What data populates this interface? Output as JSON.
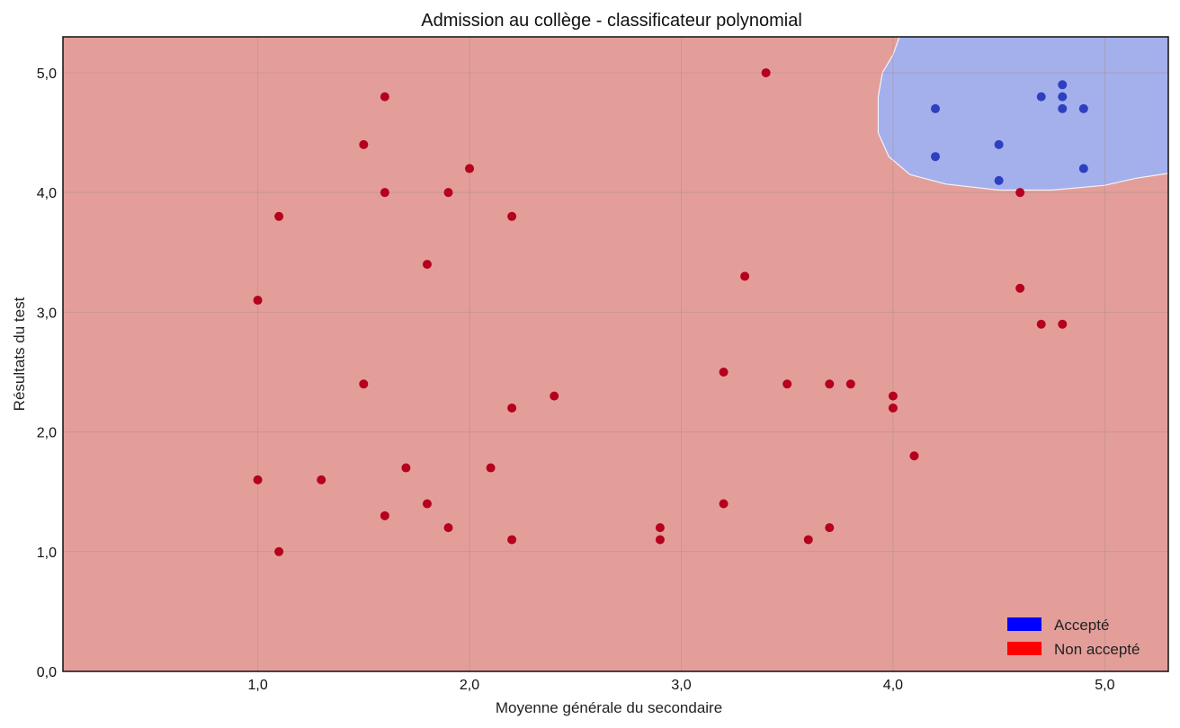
{
  "chart_data": {
    "type": "scatter",
    "title": "Admission au collège - classificateur polynomial",
    "xlabel": "Moyenne générale du secondaire",
    "ylabel": "Résultats du test",
    "xlim": [
      0.08,
      5.3
    ],
    "ylim": [
      0.0,
      5.3
    ],
    "xticks": [
      {
        "value": 1.0,
        "label": "1,0"
      },
      {
        "value": 2.0,
        "label": "2,0"
      },
      {
        "value": 3.0,
        "label": "3,0"
      },
      {
        "value": 4.0,
        "label": "4,0"
      },
      {
        "value": 5.0,
        "label": "5,0"
      }
    ],
    "yticks": [
      {
        "value": 0.0,
        "label": "0,0"
      },
      {
        "value": 1.0,
        "label": "1,0"
      },
      {
        "value": 2.0,
        "label": "2,0"
      },
      {
        "value": 3.0,
        "label": "3,0"
      },
      {
        "value": 4.0,
        "label": "4,0"
      },
      {
        "value": 5.0,
        "label": "5,0"
      }
    ],
    "grid": true,
    "legend_position": "bottom-right",
    "series": [
      {
        "name": "Accepté",
        "color": "#0000ff",
        "point_color": "#2e3fbf",
        "region_color": "#a3b0ec",
        "points": [
          [
            4.2,
            4.7
          ],
          [
            4.2,
            4.3
          ],
          [
            4.5,
            4.4
          ],
          [
            4.5,
            4.1
          ],
          [
            4.7,
            4.8
          ],
          [
            4.8,
            4.9
          ],
          [
            4.8,
            4.8
          ],
          [
            4.8,
            4.7
          ],
          [
            4.9,
            4.7
          ],
          [
            4.9,
            4.2
          ]
        ]
      },
      {
        "name": "Non accepté",
        "color": "#ff0000",
        "point_color": "#b5001f",
        "region_color": "#e39e9a",
        "points": [
          [
            1.0,
            3.1
          ],
          [
            1.0,
            1.6
          ],
          [
            1.1,
            3.8
          ],
          [
            1.1,
            1.0
          ],
          [
            1.3,
            1.6
          ],
          [
            1.5,
            4.4
          ],
          [
            1.5,
            2.4
          ],
          [
            1.6,
            4.8
          ],
          [
            1.6,
            4.0
          ],
          [
            1.6,
            1.3
          ],
          [
            1.7,
            1.7
          ],
          [
            1.8,
            3.4
          ],
          [
            1.8,
            1.4
          ],
          [
            1.9,
            4.0
          ],
          [
            1.9,
            1.2
          ],
          [
            2.0,
            4.2
          ],
          [
            2.1,
            1.7
          ],
          [
            2.2,
            3.8
          ],
          [
            2.2,
            2.2
          ],
          [
            2.2,
            1.1
          ],
          [
            2.4,
            2.3
          ],
          [
            2.9,
            1.2
          ],
          [
            2.9,
            1.1
          ],
          [
            3.2,
            2.5
          ],
          [
            3.2,
            1.4
          ],
          [
            3.3,
            3.3
          ],
          [
            3.4,
            5.0
          ],
          [
            3.5,
            2.4
          ],
          [
            3.6,
            1.1
          ],
          [
            3.7,
            2.4
          ],
          [
            3.7,
            1.2
          ],
          [
            3.8,
            2.4
          ],
          [
            4.0,
            2.3
          ],
          [
            4.0,
            2.2
          ],
          [
            4.1,
            1.8
          ],
          [
            4.6,
            4.0
          ],
          [
            4.6,
            3.2
          ],
          [
            4.7,
            2.9
          ],
          [
            4.8,
            2.9
          ]
        ]
      }
    ],
    "decision_boundary": [
      [
        4.03,
        5.3
      ],
      [
        4.0,
        5.15
      ],
      [
        3.95,
        5.0
      ],
      [
        3.93,
        4.8
      ],
      [
        3.93,
        4.5
      ],
      [
        3.98,
        4.3
      ],
      [
        4.08,
        4.15
      ],
      [
        4.25,
        4.07
      ],
      [
        4.5,
        4.02
      ],
      [
        4.75,
        4.02
      ],
      [
        5.0,
        4.06
      ],
      [
        5.15,
        4.12
      ],
      [
        5.3,
        4.16
      ]
    ]
  }
}
